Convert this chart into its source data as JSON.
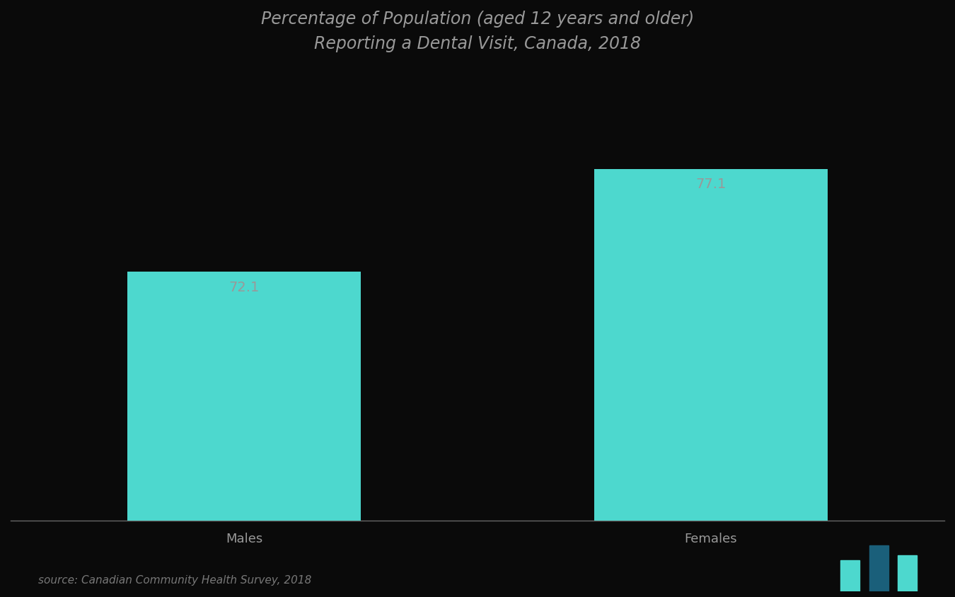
{
  "title_line1": "Percentage of Population (aged 12 years and older)",
  "title_line2": "Reporting a Dental Visit, Canada, 2018",
  "categories": [
    "Males",
    "Females"
  ],
  "values": [
    72.1,
    77.1
  ],
  "bar_color": "#4DD8CE",
  "background_color": "#0a0a0a",
  "text_color": "#999999",
  "title_color": "#999999",
  "source_text": "source: Canadian Community Health Survey, 2018",
  "ylim_min": 60,
  "ylim_max": 82,
  "bar_width": 0.25,
  "title_fontsize": 17,
  "label_fontsize": 13,
  "value_fontsize": 14,
  "source_fontsize": 11,
  "x_positions": [
    0.25,
    0.75
  ]
}
